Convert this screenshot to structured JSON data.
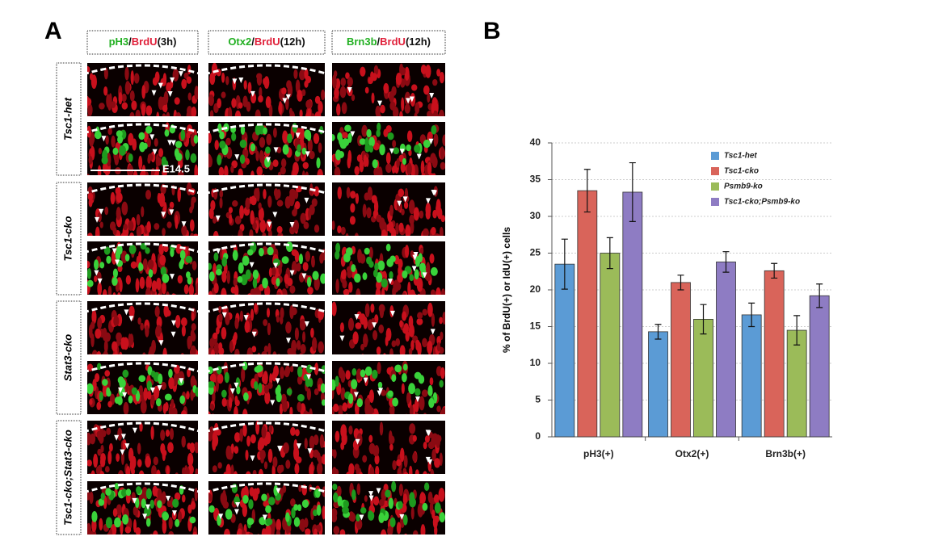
{
  "panel_a": {
    "label": "A",
    "columns": [
      [
        {
          "text": "pH3",
          "color": "#22b022"
        },
        {
          "text": "/",
          "color": "#111"
        },
        {
          "text": "BrdU",
          "color": "#e0203a"
        },
        {
          "text": "(3h)",
          "color": "#111"
        }
      ],
      [
        {
          "text": "Otx2",
          "color": "#22b022"
        },
        {
          "text": "/",
          "color": "#111"
        },
        {
          "text": "BrdU",
          "color": "#e0203a"
        },
        {
          "text": "(12h)",
          "color": "#111"
        }
      ],
      [
        {
          "text": "Brn3b",
          "color": "#22b022"
        },
        {
          "text": "/",
          "color": "#111"
        },
        {
          "text": "BrdU",
          "color": "#e0203a"
        },
        {
          "text": "(12h)",
          "color": "#111"
        }
      ]
    ],
    "rows": [
      "Tsc1-het",
      "Tsc1-cko",
      "Stat3-cko",
      "Tsc1-cko;Stat3-cko"
    ],
    "scale_label": "E14.5"
  },
  "chart_data": {
    "type": "bar",
    "panel_label": "B",
    "y_label": "% of BrdU(+) or IdU(+) cells",
    "categories": [
      "pH3(+)",
      "Otx2(+)",
      "Brn3b(+)"
    ],
    "series": [
      {
        "name": "Tsc1-het",
        "color": "#5b9bd5",
        "values": [
          23.5,
          14.3,
          16.6
        ],
        "errors": [
          3.4,
          1.0,
          1.6
        ]
      },
      {
        "name": "Tsc1-cko",
        "color": "#d9645a",
        "values": [
          33.5,
          21.0,
          22.6
        ],
        "errors": [
          2.9,
          1.0,
          1.0
        ]
      },
      {
        "name": "Psmb9-ko",
        "color": "#9bbb59",
        "values": [
          25.0,
          16.0,
          14.5
        ],
        "errors": [
          2.1,
          2.0,
          2.0
        ]
      },
      {
        "name": "Tsc1-cko;Psmb9-ko",
        "color": "#8e7cc3",
        "values": [
          33.3,
          23.8,
          19.2
        ],
        "errors": [
          4.0,
          1.4,
          1.6
        ]
      }
    ],
    "ylim": [
      0,
      40
    ],
    "yticks": [
      0,
      5,
      10,
      15,
      20,
      25,
      30,
      35,
      40
    ],
    "grid": true,
    "legend": "upper-right"
  }
}
